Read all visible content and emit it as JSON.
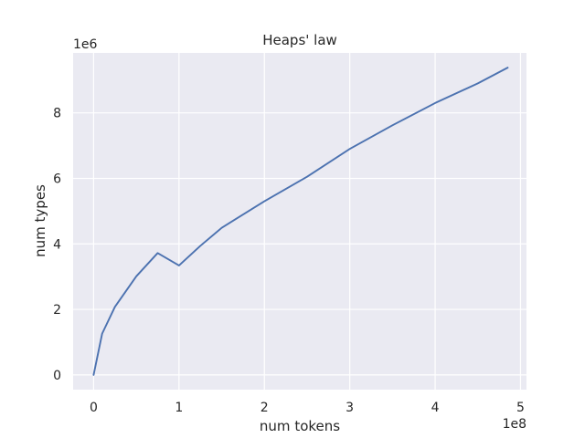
{
  "chart_data": {
    "type": "line",
    "title": "Heaps' law",
    "xlabel": "num tokens",
    "ylabel": "num types",
    "x_offset_label": "1e8",
    "y_offset_label": "1e6",
    "xlim": [
      -0.24,
      5.07
    ],
    "ylim": [
      -0.45,
      9.83
    ],
    "x_ticks": [
      0,
      1,
      2,
      3,
      4,
      5
    ],
    "x_tick_labels": [
      "0",
      "1",
      "2",
      "3",
      "4",
      "5"
    ],
    "y_ticks": [
      0,
      2,
      4,
      6,
      8
    ],
    "y_tick_labels": [
      "0",
      "2",
      "4",
      "6",
      "8"
    ],
    "grid": true,
    "legend": "none",
    "colors": {
      "background": "#eaeaf2",
      "grid": "#ffffff",
      "line": "#4c72b0"
    },
    "series": [
      {
        "x": [
          0,
          0.1,
          0.25,
          0.5,
          0.75,
          1.0,
          1.25,
          1.5,
          2.0,
          2.5,
          3.0,
          3.5,
          4.0,
          4.5,
          4.85
        ],
        "y": [
          0,
          1.26,
          2.08,
          3.01,
          3.72,
          3.34,
          3.94,
          4.49,
          5.3,
          6.05,
          6.9,
          7.62,
          8.3,
          8.9,
          9.38
        ]
      }
    ]
  }
}
